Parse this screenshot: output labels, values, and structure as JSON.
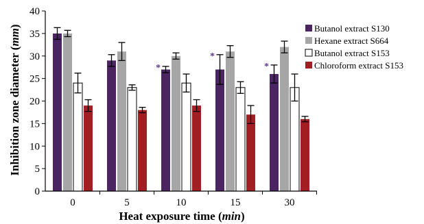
{
  "chart_data": {
    "type": "bar",
    "title": "",
    "xlabel": "Heat exposure time",
    "xlabel_unit": "min",
    "ylabel": "Inhibition zone diameter",
    "ylabel_unit": "mm",
    "ylim": [
      0,
      40
    ],
    "yticks": [
      0,
      5,
      10,
      15,
      20,
      25,
      30,
      35,
      40
    ],
    "categories": [
      "0",
      "5",
      "10",
      "15",
      "30"
    ],
    "series": [
      {
        "name": "Butanol extract S130",
        "color": "#4b2562",
        "fill": "#4b2562",
        "values": [
          35,
          29,
          27,
          27,
          26
        ],
        "errors": [
          1.3,
          1.3,
          0.7,
          3.3,
          2.0
        ]
      },
      {
        "name": "Hexane extract S664",
        "color": "#a6a6a6",
        "fill": "#a6a6a6",
        "values": [
          35,
          31,
          30,
          31,
          32
        ],
        "errors": [
          0.7,
          2.0,
          0.7,
          1.3,
          1.3
        ]
      },
      {
        "name": "Butanol extract S153",
        "color": "#000000",
        "fill": "#ffffff",
        "values": [
          24,
          23,
          24,
          23,
          23
        ],
        "errors": [
          2.2,
          0.6,
          2.0,
          1.3,
          3.0
        ]
      },
      {
        "name": "Chloroform extract S153",
        "color": "#a11f22",
        "fill": "#a11f22",
        "values": [
          19,
          18,
          19,
          17,
          16
        ],
        "errors": [
          1.3,
          0.6,
          1.3,
          2.0,
          0.6
        ]
      }
    ],
    "significance": [
      {
        "series": 0,
        "category": 2,
        "mark": "*"
      },
      {
        "series": 0,
        "category": 3,
        "mark": "*"
      },
      {
        "series": 0,
        "category": 4,
        "mark": "*"
      }
    ],
    "legend_position": "top-right",
    "grid": false
  }
}
